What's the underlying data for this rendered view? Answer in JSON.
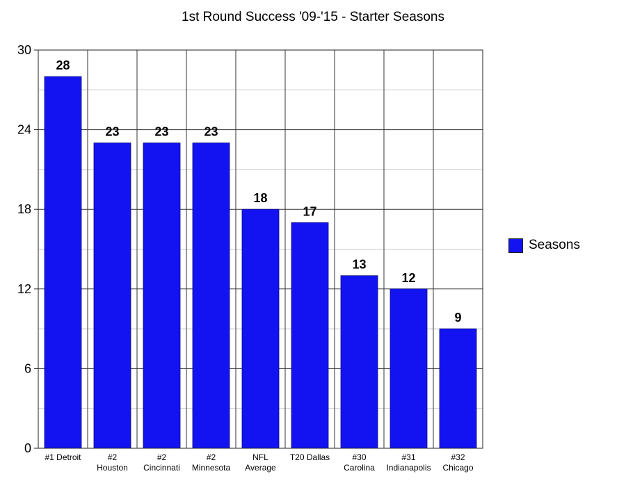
{
  "chart_data": {
    "type": "bar",
    "title": "1st Round Success '09-'15 - Starter Seasons",
    "xlabel": "",
    "ylabel": "",
    "categories": [
      [
        "#1 Detroit"
      ],
      [
        "#2",
        "Houston"
      ],
      [
        "#2",
        "Cincinnati"
      ],
      [
        "#2",
        "Minnesota"
      ],
      [
        "NFL",
        "Average"
      ],
      [
        "T20 Dallas"
      ],
      [
        "#30",
        "Carolina"
      ],
      [
        "#31",
        "Indianapolis"
      ],
      [
        "#32",
        "Chicago"
      ]
    ],
    "series": [
      {
        "name": "Seasons",
        "color": "#1313f2",
        "values": [
          28,
          23,
          23,
          23,
          18,
          17,
          13,
          12,
          9
        ]
      }
    ],
    "ylim": [
      0,
      30
    ],
    "yticks": [
      0,
      6,
      12,
      18,
      24,
      30
    ],
    "grid": true,
    "data_labels": true,
    "legend": "right"
  }
}
